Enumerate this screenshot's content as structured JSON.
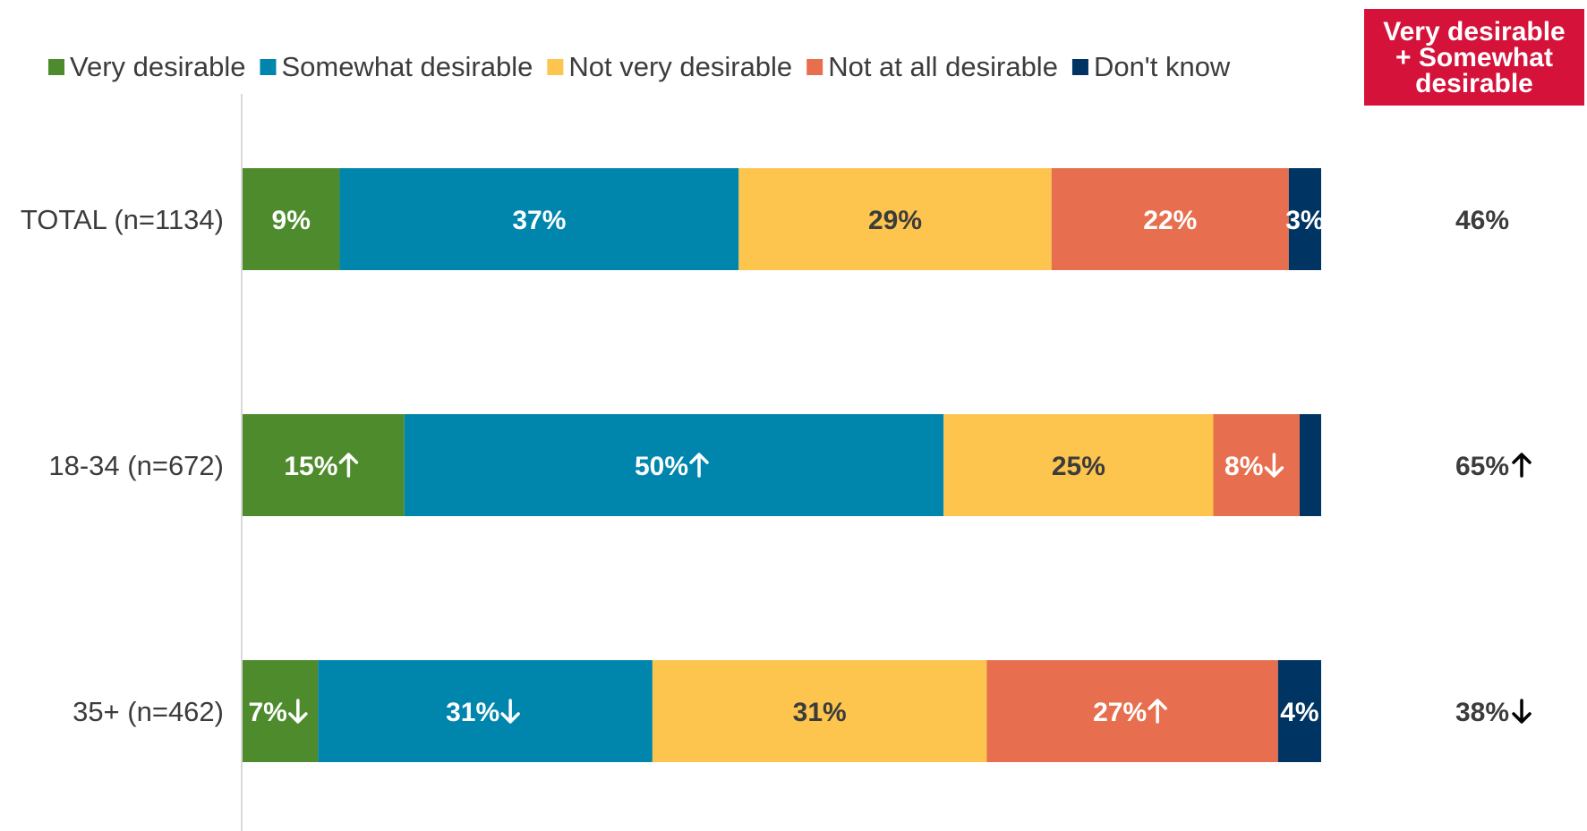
{
  "chart_data": {
    "type": "bar",
    "orientation": "horizontal",
    "stacked": true,
    "normalized_to": 100,
    "categories": [
      "TOTAL (n=1134)",
      "18-34 (n=672)",
      "35+ (n=462)"
    ],
    "series": [
      {
        "name": "Very desirable",
        "color": "#4e8b2c",
        "label_color": "#ffffff",
        "values": [
          9,
          15,
          7
        ],
        "labels": [
          "9%",
          "15%",
          "7%"
        ],
        "sig": [
          "",
          "up",
          "down"
        ]
      },
      {
        "name": "Somewhat desirable",
        "color": "#0085ad",
        "label_color": "#ffffff",
        "values": [
          37,
          50,
          31
        ],
        "labels": [
          "37%",
          "50%",
          "31%"
        ],
        "sig": [
          "",
          "up",
          "down"
        ]
      },
      {
        "name": "Not very desirable",
        "color": "#fdc54e",
        "label_color": "#3c3c3c",
        "values": [
          29,
          25,
          31
        ],
        "labels": [
          "29%",
          "25%",
          "31%"
        ],
        "sig": [
          "",
          "",
          ""
        ]
      },
      {
        "name": "Not at all desirable",
        "color": "#e76f4f",
        "label_color": "#ffffff",
        "values": [
          22,
          8,
          27
        ],
        "labels": [
          "22%",
          "8%",
          "27%"
        ],
        "sig": [
          "",
          "down",
          "up"
        ]
      },
      {
        "name": "Don't know",
        "color": "#003462",
        "label_color": "#ffffff",
        "values": [
          3,
          2,
          4
        ],
        "labels": [
          "3%",
          "",
          "4%"
        ],
        "sig": [
          "",
          "",
          ""
        ]
      }
    ],
    "net": {
      "title": "Very desirable\n+ Somewhat\ndesirable",
      "header_color": "#d5123a",
      "values": [
        46,
        65,
        38
      ],
      "labels": [
        "46%",
        "65%",
        "38%"
      ],
      "sig": [
        "",
        "up",
        "down"
      ]
    },
    "legend_position": "top",
    "grid": false,
    "text_color": "#3c3c3c"
  }
}
